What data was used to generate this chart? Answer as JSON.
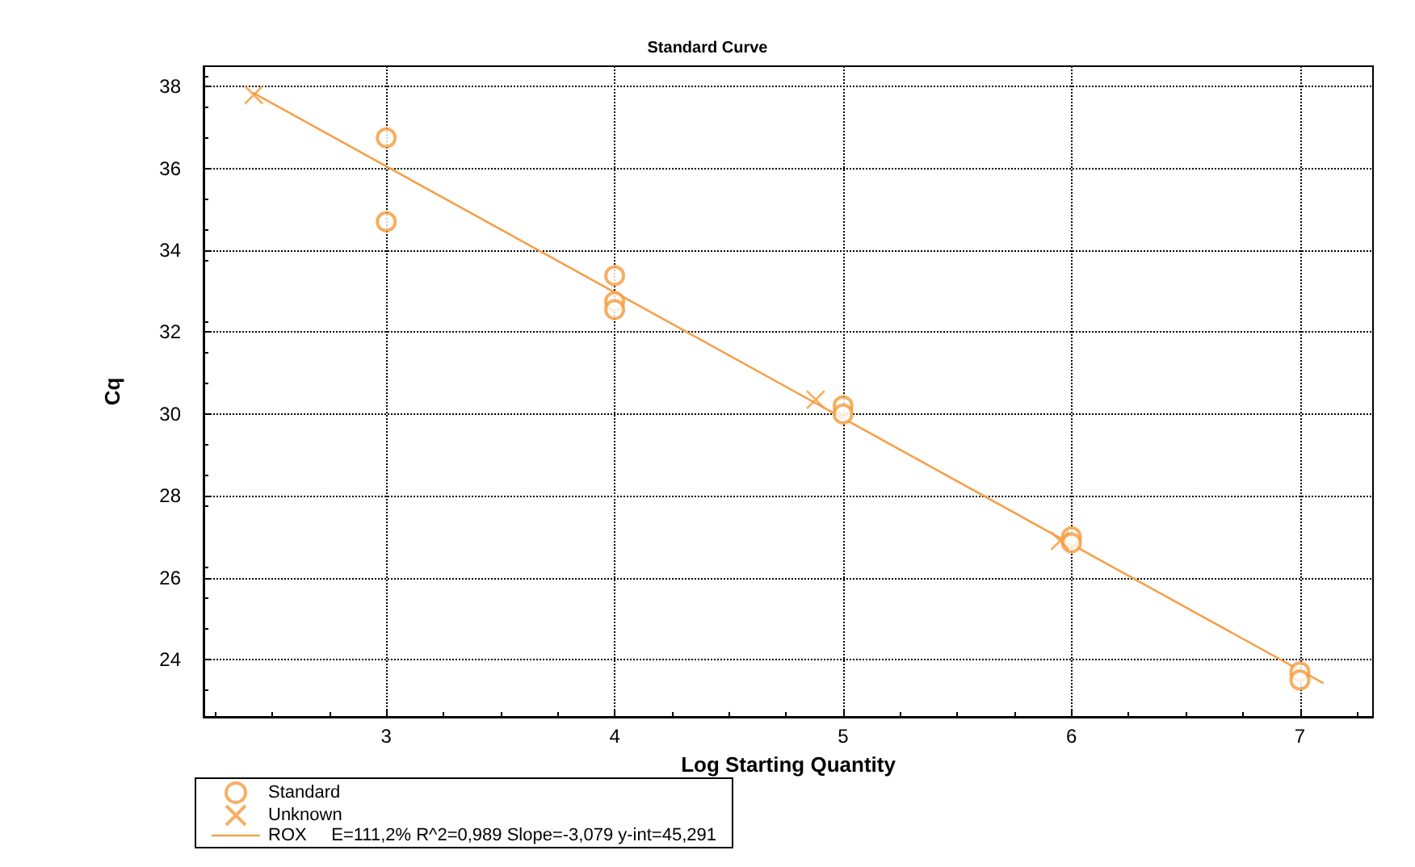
{
  "chart_data": {
    "type": "scatter",
    "title": "Standard Curve",
    "xlabel": "Log Starting Quantity",
    "ylabel": "Cq",
    "xlim": [
      2.2,
      7.32
    ],
    "xticks": [
      3,
      4,
      5,
      6,
      7
    ],
    "ylim": [
      22.6,
      38.5
    ],
    "yticks": [
      24,
      26,
      28,
      30,
      32,
      34,
      36,
      38
    ],
    "grid": true,
    "legend": "bottom",
    "series": [
      {
        "name": "Standard",
        "marker": "circle",
        "color": "#f59a3a",
        "x": [
          3,
          3,
          4,
          4,
          4,
          5,
          5,
          6,
          6,
          7,
          7
        ],
        "values": [
          36.75,
          34.7,
          33.38,
          32.75,
          32.55,
          30.2,
          30.0,
          27.0,
          26.85,
          23.7,
          23.5
        ]
      },
      {
        "name": "Unknown",
        "marker": "cross",
        "color": "#f59a3a",
        "x": [
          2.42,
          4.88,
          5.95
        ],
        "values": [
          37.8,
          30.35,
          26.9
        ]
      },
      {
        "name": "ROX     E=111,2% R^2=0,989 Slope=-3,079 y-int=45,291",
        "type": "line",
        "marker": "none",
        "line_style": "solid",
        "color": "#f5a04a",
        "x": [
          2.42,
          7.1
        ],
        "values": [
          37.84,
          23.43
        ]
      }
    ]
  }
}
